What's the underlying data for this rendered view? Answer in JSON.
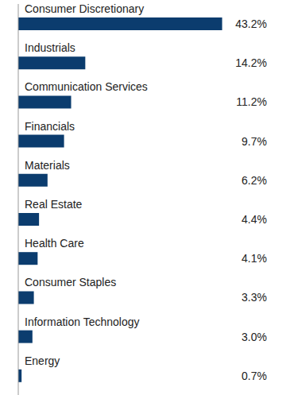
{
  "chart_data": {
    "type": "bar",
    "orientation": "horizontal",
    "categories": [
      "Consumer Discretionary",
      "Industrials",
      "Communication Services",
      "Financials",
      "Materials",
      "Real Estate",
      "Health Care",
      "Consumer Staples",
      "Information Technology",
      "Energy"
    ],
    "values": [
      43.2,
      14.2,
      11.2,
      9.7,
      6.2,
      4.4,
      4.1,
      3.3,
      3.0,
      0.7
    ],
    "value_labels": [
      "43.2%",
      "14.2%",
      "11.2%",
      "9.7%",
      "6.2%",
      "4.4%",
      "4.1%",
      "3.3%",
      "3.0%",
      "0.7%"
    ],
    "color": "#0b3c6e",
    "xlim": [
      0,
      50
    ],
    "data_labels": true,
    "tick_labels": false
  }
}
